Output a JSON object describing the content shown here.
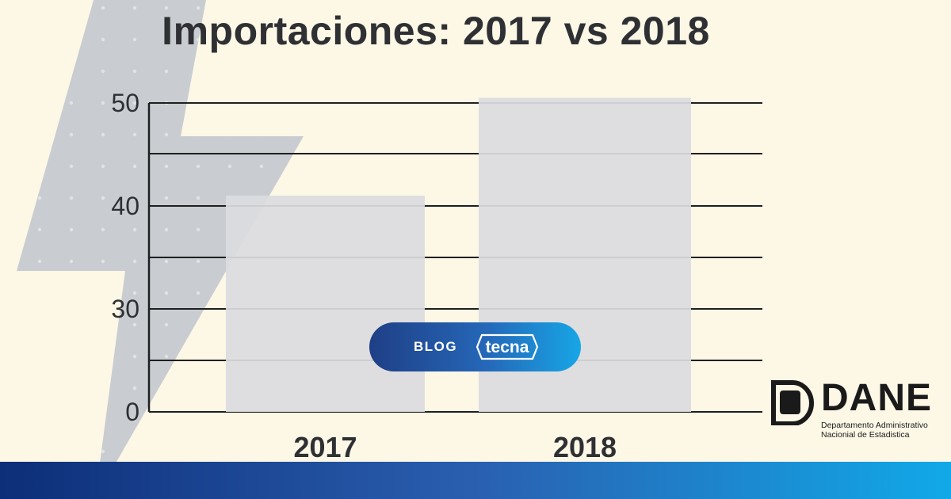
{
  "chart_data": {
    "type": "bar",
    "title": "Importaciones: 2017 vs 2018",
    "categories": [
      "2017",
      "2018"
    ],
    "values": [
      41,
      50.5
    ],
    "ylim": [
      0,
      50
    ],
    "yticks": [
      {
        "value": 0,
        "label": "0"
      },
      {
        "value": 30,
        "label": "30"
      },
      {
        "value": 40,
        "label": "40"
      },
      {
        "value": 50,
        "label": "50"
      }
    ],
    "grid": true,
    "bar_color": "#dcdcdf"
  },
  "badge": {
    "blog_label": "BLOG",
    "brand": "tecna"
  },
  "source_logo": {
    "name": "DANE",
    "line1": "Departamento Administrativo",
    "line2": "Nacionial de Estadistica"
  },
  "colors": {
    "background": "#fdf7e6",
    "title": "#2e3033",
    "bar": "#dcdcdf",
    "bolt": "#bfc5cc",
    "pill_start": "#1f3f86",
    "pill_end": "#17a6e6"
  }
}
